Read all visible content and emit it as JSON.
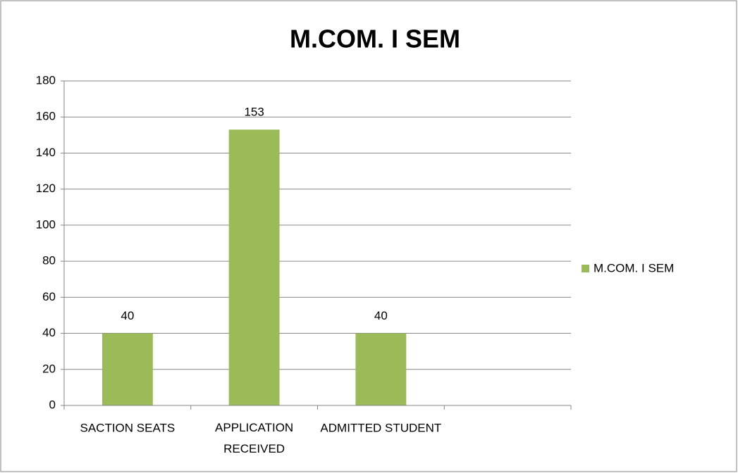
{
  "chart_data": {
    "type": "bar",
    "title": "M.COM. I SEM",
    "categories": [
      "SACTION SEATS",
      "APPLICATION RECEIVED",
      "ADMITTED STUDENT",
      null
    ],
    "series": [
      {
        "name": "M.COM. I SEM",
        "color": "#9bbb59",
        "values": [
          40,
          153,
          40,
          null
        ]
      }
    ],
    "ylim": [
      0,
      180
    ],
    "yticks": [
      0,
      20,
      40,
      60,
      80,
      100,
      120,
      140,
      160,
      180
    ],
    "grid": true,
    "legend": "right",
    "data_labels": true
  }
}
